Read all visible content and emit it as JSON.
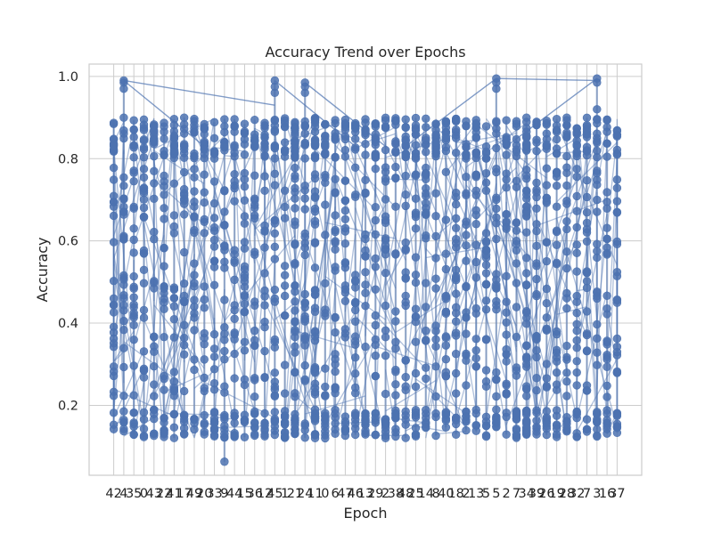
{
  "chart_data": {
    "type": "line",
    "title": "Accuracy Trend over Epochs",
    "xlabel": "Epoch",
    "ylabel": "Accuracy",
    "ylim": [
      0.03,
      1.03
    ],
    "yticks": [
      "0.2",
      "0.4",
      "0.6",
      "0.8",
      "1.0"
    ],
    "grid": true,
    "marker": "circle",
    "series_color": "#4c72b0",
    "categories": [
      "42",
      "4",
      "35",
      "0",
      "43",
      "22",
      "41",
      "17",
      "49",
      "20",
      "33",
      "9",
      "44",
      "15",
      "36",
      "12",
      "45",
      "1",
      "21",
      "24",
      "11",
      "0",
      "6",
      "47",
      "46",
      "13",
      "29",
      "2",
      "38",
      "48",
      "25",
      "14",
      "8",
      "40",
      "18",
      "2",
      "13",
      "5",
      "5",
      "2",
      "7",
      "34",
      "39",
      "26",
      "19",
      "28",
      "32",
      "7",
      "3",
      "16",
      "37"
    ],
    "point_count_per_epoch": 36,
    "line_segment_count": 320,
    "y_min_point": 0.063,
    "y_max_point": 0.995,
    "bands": [
      {
        "range": [
          0.12,
          0.19
        ],
        "note": "dense lower cluster"
      },
      {
        "range": [
          0.22,
          0.78
        ],
        "note": "main spread"
      },
      {
        "range": [
          0.8,
          0.9
        ],
        "note": "dense upper cluster"
      }
    ],
    "high_outliers": [
      {
        "epoch_index": 1,
        "values": [
          0.99,
          0.985,
          0.97
        ]
      },
      {
        "epoch_index": 16,
        "values": [
          0.99,
          0.975,
          0.96
        ]
      },
      {
        "epoch_index": 19,
        "values": [
          0.985,
          0.975,
          0.96
        ]
      },
      {
        "epoch_index": 38,
        "values": [
          0.995,
          0.985,
          0.97
        ]
      },
      {
        "epoch_index": 48,
        "values": [
          0.995,
          0.985,
          0.92
        ]
      }
    ],
    "low_outlier": {
      "epoch_index": 11,
      "value": 0.063
    }
  }
}
